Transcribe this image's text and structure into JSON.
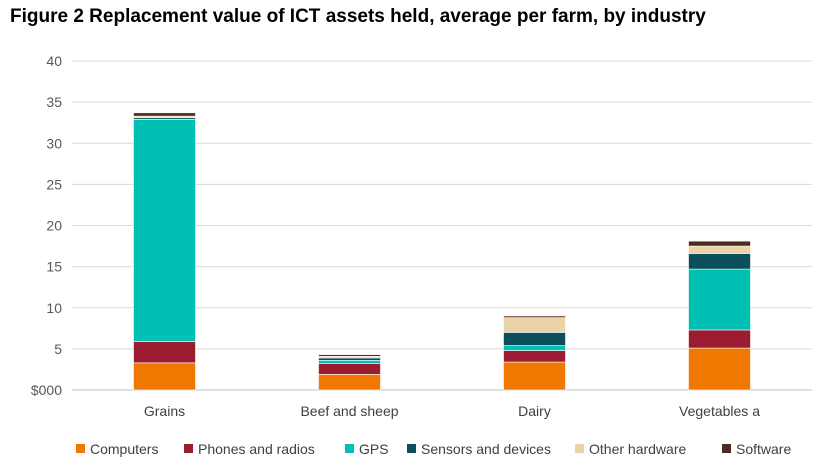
{
  "chart_data": {
    "type": "bar",
    "stacked": true,
    "title": "Figure 2 Replacement value of ICT assets held, average per farm, by industry",
    "categories": [
      "Grains",
      "Beef and sheep",
      "Dairy",
      "Vegetables a"
    ],
    "series": [
      {
        "name": "Computers",
        "color": "#f07800",
        "values": [
          3.3,
          1.9,
          3.4,
          5.1
        ]
      },
      {
        "name": "Phones and radios",
        "color": "#9b1c31",
        "values": [
          2.6,
          1.3,
          1.4,
          2.2
        ]
      },
      {
        "name": "GPS",
        "color": "#00bfb3",
        "values": [
          27.0,
          0.4,
          0.6,
          7.4
        ]
      },
      {
        "name": "Sensors and devices",
        "color": "#0b4f5c",
        "values": [
          0.2,
          0.3,
          1.6,
          1.9
        ]
      },
      {
        "name": "Other hardware",
        "color": "#ead3a8",
        "values": [
          0.2,
          0.2,
          1.8,
          0.9
        ]
      },
      {
        "name": "Software",
        "color": "#4a2c22",
        "values": [
          0.4,
          0.2,
          0.2,
          0.6
        ]
      }
    ],
    "ylim": [
      0,
      40
    ],
    "yticks": [
      0,
      5,
      10,
      15,
      20,
      25,
      30,
      35,
      40
    ],
    "ytick_labels": [
      "$000",
      "5",
      "10",
      "15",
      "20",
      "25",
      "30",
      "35",
      "40"
    ],
    "grid": true,
    "legend_position": "bottom"
  }
}
